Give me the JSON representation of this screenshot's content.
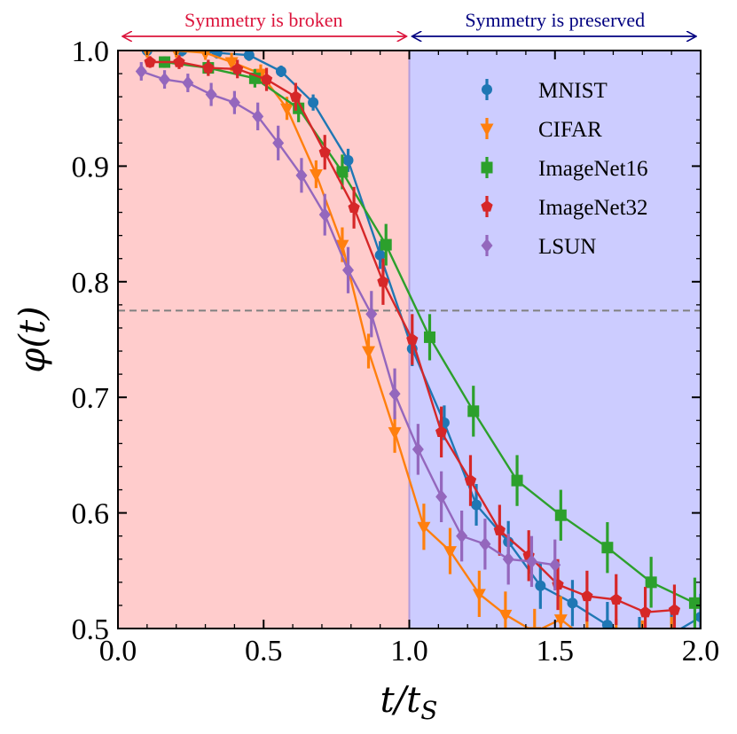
{
  "chart_data": {
    "type": "line",
    "title": "",
    "xlabel": "t/t_S",
    "ylabel": "φ(t)",
    "xlim": [
      0.0,
      2.0
    ],
    "ylim": [
      0.5,
      1.0
    ],
    "xticks": [
      "0.0",
      "0.5",
      "1.0",
      "1.5",
      "2.0"
    ],
    "yticks": [
      "0.5",
      "0.6",
      "0.7",
      "0.8",
      "0.9",
      "1.0"
    ],
    "threshold_line": 0.775,
    "regions": [
      {
        "name": "broken",
        "from": 0.0,
        "to": 1.0,
        "color": "#ffcccc",
        "label": "Symmetry is broken",
        "label_color": "#dc143c"
      },
      {
        "name": "preserved",
        "from": 1.0,
        "to": 2.0,
        "color": "#ccccff",
        "label": "Symmetry is preserved",
        "label_color": "#000080"
      }
    ],
    "boundary_line_color": "#b39ddb",
    "legend_position": "upper-right",
    "series": [
      {
        "name": "MNIST",
        "color": "#1f77b4",
        "marker": "circle",
        "x": [
          0.1,
          0.22,
          0.34,
          0.45,
          0.56,
          0.67,
          0.79,
          0.9,
          1.01,
          1.12,
          1.23,
          1.34,
          1.45,
          1.56,
          1.68,
          1.79,
          1.9,
          2.0
        ],
        "y": [
          1.0,
          1.0,
          0.998,
          0.996,
          0.982,
          0.955,
          0.905,
          0.823,
          0.742,
          0.678,
          0.607,
          0.575,
          0.537,
          0.522,
          0.503,
          0.49,
          0.495,
          0.51
        ],
        "err": [
          0.005,
          0.005,
          0.005,
          0.005,
          0.005,
          0.007,
          0.01,
          0.012,
          0.015,
          0.015,
          0.018,
          0.018,
          0.02,
          0.02,
          0.02,
          0.02,
          0.02,
          0.02
        ]
      },
      {
        "name": "CIFAR",
        "color": "#ff7f0e",
        "marker": "triangle-down",
        "x": [
          0.1,
          0.2,
          0.3,
          0.39,
          0.49,
          0.58,
          0.68,
          0.77,
          0.86,
          0.95,
          1.05,
          1.14,
          1.24,
          1.33,
          1.43,
          1.52,
          1.61,
          1.71,
          1.8,
          1.9
        ],
        "y": [
          1.0,
          1.0,
          0.998,
          0.99,
          0.98,
          0.95,
          0.893,
          0.832,
          0.74,
          0.67,
          0.588,
          0.567,
          0.53,
          0.512,
          0.497,
          0.508,
          0.49,
          0.488,
          0.487,
          0.49
        ],
        "err": [
          0.006,
          0.006,
          0.006,
          0.008,
          0.008,
          0.01,
          0.012,
          0.015,
          0.015,
          0.018,
          0.02,
          0.02,
          0.02,
          0.02,
          0.02,
          0.02,
          0.02,
          0.02,
          0.02,
          0.02
        ]
      },
      {
        "name": "ImageNet16",
        "color": "#2ca02c",
        "marker": "square",
        "x": [
          0.16,
          0.31,
          0.47,
          0.62,
          0.77,
          0.92,
          1.07,
          1.22,
          1.37,
          1.52,
          1.68,
          1.83,
          1.98
        ],
        "y": [
          0.99,
          0.985,
          0.976,
          0.95,
          0.895,
          0.832,
          0.752,
          0.688,
          0.628,
          0.598,
          0.57,
          0.54,
          0.522
        ],
        "err": [
          0.005,
          0.006,
          0.008,
          0.012,
          0.015,
          0.018,
          0.02,
          0.022,
          0.022,
          0.022,
          0.022,
          0.022,
          0.022
        ]
      },
      {
        "name": "ImageNet32",
        "color": "#d62728",
        "marker": "pentagon",
        "x": [
          0.11,
          0.21,
          0.31,
          0.41,
          0.51,
          0.61,
          0.71,
          0.81,
          0.91,
          1.01,
          1.11,
          1.21,
          1.31,
          1.41,
          1.51,
          1.61,
          1.71,
          1.81,
          1.91
        ],
        "y": [
          0.99,
          0.99,
          0.985,
          0.984,
          0.975,
          0.96,
          0.912,
          0.864,
          0.8,
          0.75,
          0.67,
          0.628,
          0.585,
          0.563,
          0.538,
          0.528,
          0.525,
          0.514,
          0.516
        ],
        "err": [
          0.005,
          0.006,
          0.007,
          0.008,
          0.01,
          0.012,
          0.015,
          0.018,
          0.02,
          0.022,
          0.022,
          0.022,
          0.022,
          0.022,
          0.022,
          0.022,
          0.022,
          0.022,
          0.022
        ]
      },
      {
        "name": "LSUN",
        "color": "#9467bd",
        "marker": "diamond",
        "x": [
          0.08,
          0.16,
          0.24,
          0.32,
          0.4,
          0.48,
          0.55,
          0.63,
          0.71,
          0.79,
          0.87,
          0.95,
          1.03,
          1.11,
          1.18,
          1.26,
          1.34,
          1.42,
          1.5
        ],
        "y": [
          0.982,
          0.975,
          0.972,
          0.962,
          0.955,
          0.943,
          0.92,
          0.892,
          0.858,
          0.81,
          0.772,
          0.703,
          0.655,
          0.614,
          0.58,
          0.573,
          0.56,
          0.558,
          0.555
        ],
        "err": [
          0.008,
          0.008,
          0.008,
          0.01,
          0.01,
          0.012,
          0.015,
          0.015,
          0.018,
          0.02,
          0.02,
          0.022,
          0.022,
          0.022,
          0.022,
          0.022,
          0.022,
          0.022,
          0.022
        ]
      }
    ]
  }
}
